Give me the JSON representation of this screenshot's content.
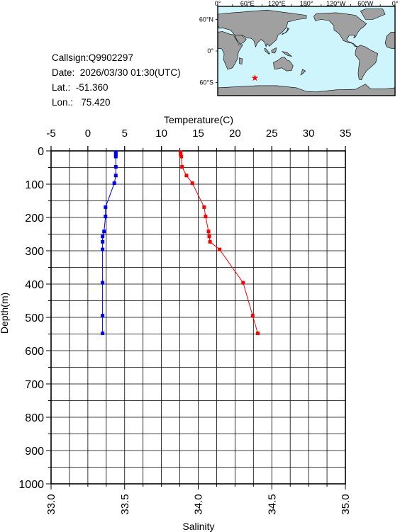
{
  "info": {
    "callsign": "Callsign:Q9902297",
    "date": "Date:  2026/03/30 01:30(UTC)",
    "lat": "Lat.:  -51.360",
    "lon": "Lon.:   75.420"
  },
  "map": {
    "top_labels": [
      "0°",
      "60°E",
      "120°E",
      "180°",
      "120°W",
      "60°W",
      "0°"
    ],
    "left_labels": [
      "60°N",
      "0°",
      "60°S"
    ],
    "marker_lon": 75.42,
    "marker_lat": -51.36,
    "ocean_color": "#cdf5fb",
    "land_color": "#a0a0a0",
    "marker_color": "#ff0000"
  },
  "chart_data": {
    "type": "line",
    "top_axis_label": "Temperature(C)",
    "bottom_axis_label": "Salinity",
    "ylabel": "Depth(m)",
    "temperature_range": [
      -5,
      35
    ],
    "salinity_range": [
      33.0,
      35.0
    ],
    "depth_range": [
      0,
      1000
    ],
    "temperature_ticks": [
      "-5",
      "0",
      "5",
      "10",
      "15",
      "20",
      "25",
      "30",
      "35"
    ],
    "salinity_ticks": [
      "33.0",
      "33.5",
      "34.0",
      "34.5",
      "35.0"
    ],
    "depth_ticks": [
      "0",
      "100",
      "200",
      "300",
      "400",
      "500",
      "600",
      "700",
      "800",
      "900",
      "1000"
    ],
    "grid": true,
    "series": [
      {
        "color": "#ff0000",
        "axis": "temperature",
        "points": [
          [
            12.6,
            4
          ],
          [
            12.6,
            10
          ],
          [
            12.7,
            17
          ],
          [
            12.8,
            48
          ],
          [
            13.4,
            74
          ],
          [
            14.2,
            97
          ],
          [
            15.8,
            169
          ],
          [
            16.0,
            197
          ],
          [
            16.4,
            242
          ],
          [
            16.5,
            257
          ],
          [
            16.6,
            273
          ],
          [
            17.9,
            296
          ],
          [
            21.1,
            396
          ],
          [
            22.4,
            495
          ],
          [
            23.1,
            548
          ]
        ]
      },
      {
        "color": "#0000ff",
        "axis": "salinity",
        "points": [
          [
            33.44,
            4
          ],
          [
            33.44,
            10
          ],
          [
            33.44,
            17
          ],
          [
            33.44,
            48
          ],
          [
            33.44,
            74
          ],
          [
            33.43,
            97
          ],
          [
            33.37,
            169
          ],
          [
            33.37,
            197
          ],
          [
            33.36,
            242
          ],
          [
            33.35,
            257
          ],
          [
            33.35,
            273
          ],
          [
            33.35,
            296
          ],
          [
            33.35,
            396
          ],
          [
            33.35,
            495
          ],
          [
            33.35,
            548
          ]
        ]
      }
    ]
  }
}
